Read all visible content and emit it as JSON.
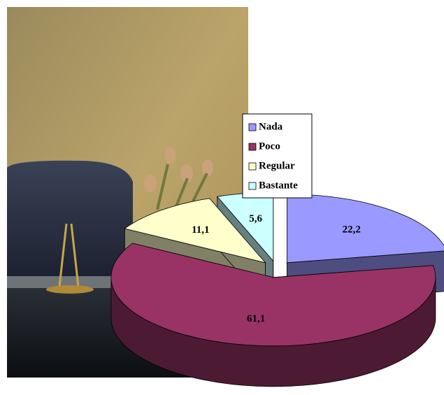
{
  "chart_data": {
    "type": "pie",
    "categories": [
      "Nada",
      "Poco",
      "Regular",
      "Bastante"
    ],
    "values": [
      22.2,
      61.1,
      11.1,
      5.6
    ],
    "value_labels": [
      "22,2",
      "61,1",
      "11,1",
      "5,6"
    ],
    "colors": [
      "#9999ff",
      "#993366",
      "#ffffcc",
      "#ccffff"
    ],
    "legend": "top"
  }
}
